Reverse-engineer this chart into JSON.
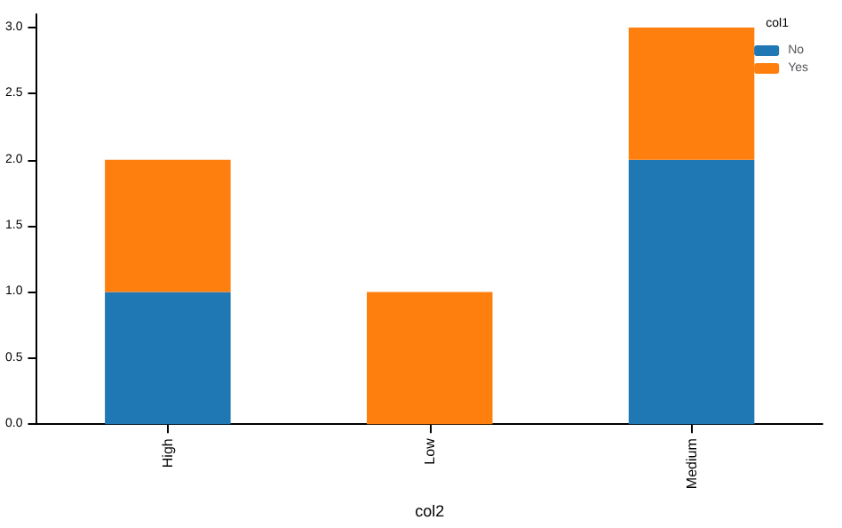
{
  "chart_data": {
    "type": "bar",
    "stacked": true,
    "xlabel": "col2",
    "legend_title": "col1",
    "legend": "top right",
    "grid": false,
    "categories": [
      "High",
      "Low",
      "Medium"
    ],
    "series": [
      {
        "name": "No",
        "color": "#1f77b4",
        "values": [
          1,
          0,
          2
        ]
      },
      {
        "name": "Yes",
        "color": "#ff7f0e",
        "values": [
          1,
          1,
          1
        ]
      }
    ],
    "ylim": [
      0,
      3.1
    ],
    "yticks": [
      {
        "value": 0,
        "label": "0.0"
      },
      {
        "value": 0.5,
        "label": "0.5"
      },
      {
        "value": 1,
        "label": "1.0"
      },
      {
        "value": 1.5,
        "label": "1.5"
      },
      {
        "value": 2,
        "label": "2.0"
      },
      {
        "value": 2.5,
        "label": "2.5"
      },
      {
        "value": 3,
        "label": "3.0"
      }
    ]
  }
}
